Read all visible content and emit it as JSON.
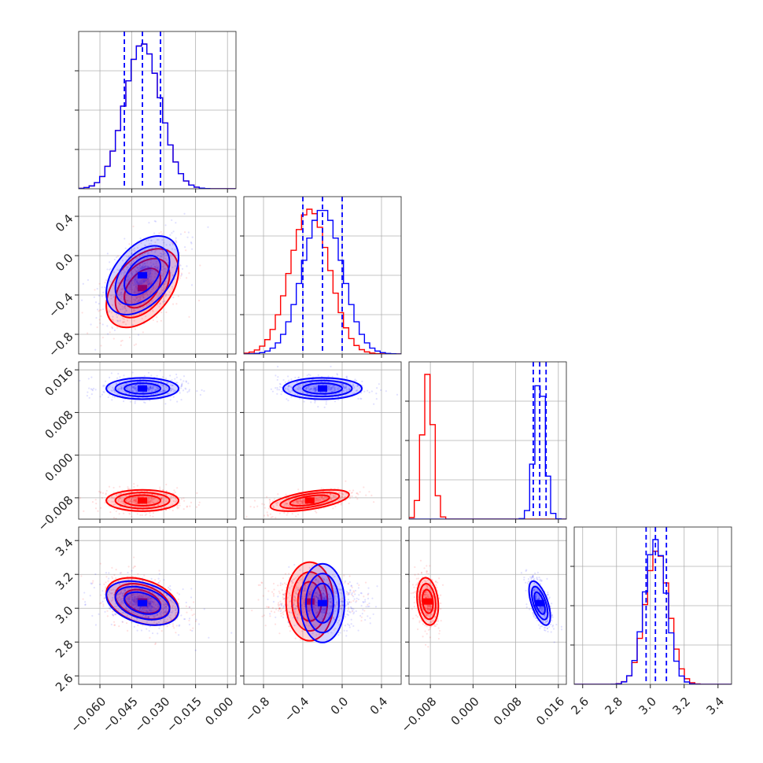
{
  "chart_data": {
    "type": "corner",
    "parameters": [
      "",
      "",
      "",
      ""
    ],
    "ranges": [
      [
        -0.07,
        0.004
      ],
      [
        -1.0,
        0.6
      ],
      [
        -0.012,
        0.0175
      ],
      [
        2.55,
        3.48
      ]
    ],
    "ticks": [
      [
        -0.06,
        -0.045,
        -0.03,
        -0.015,
        0.0
      ],
      [
        -0.8,
        -0.4,
        0.0,
        0.4
      ],
      [
        -0.008,
        0.0,
        0.008,
        0.016
      ],
      [
        2.6,
        2.8,
        3.0,
        3.2,
        3.4
      ]
    ],
    "tick_labels": [
      [
        "−0.060",
        "−0.045",
        "−0.030",
        "−0.015",
        "0.000"
      ],
      [
        "−0.8",
        "−0.4",
        "0.0",
        "0.4"
      ],
      [
        "−0.008",
        "0.000",
        "0.008",
        "0.016"
      ],
      [
        "2.6",
        "2.8",
        "3.0",
        "3.2",
        "3.4"
      ]
    ],
    "series": [
      {
        "color": "#ff0000",
        "mean": [
          -0.04,
          -0.33,
          -0.0085,
          3.04
        ],
        "sigma": [
          0.0085,
          0.2,
          0.001,
          0.07
        ],
        "correlation": {
          "1-0": 0.45,
          "2-0": 0.0,
          "2-1": 0.55,
          "3-0": -0.35,
          "3-1": 0.0,
          "3-2": -0.2
        }
      },
      {
        "color": "#0000ff",
        "mean": [
          -0.04,
          -0.2,
          0.0125,
          3.03
        ],
        "sigma": [
          0.0085,
          0.2,
          0.001,
          0.065
        ],
        "correlation": {
          "1-0": 0.45,
          "2-0": 0.0,
          "2-1": 0.0,
          "3-0": -0.35,
          "3-1": 0.0,
          "3-2": -0.6
        }
      }
    ],
    "quantile_lines": {
      "color": "#0000ff",
      "values": [
        [
          -0.0485,
          -0.04,
          -0.0315
        ],
        [
          -0.4,
          -0.2,
          0.0
        ],
        [
          0.0113,
          0.0125,
          0.0137
        ],
        [
          2.975,
          3.03,
          3.095
        ]
      ]
    },
    "contour_levels": [
      0.5,
      1.0,
      1.5,
      2.0
    ],
    "grid": true
  }
}
